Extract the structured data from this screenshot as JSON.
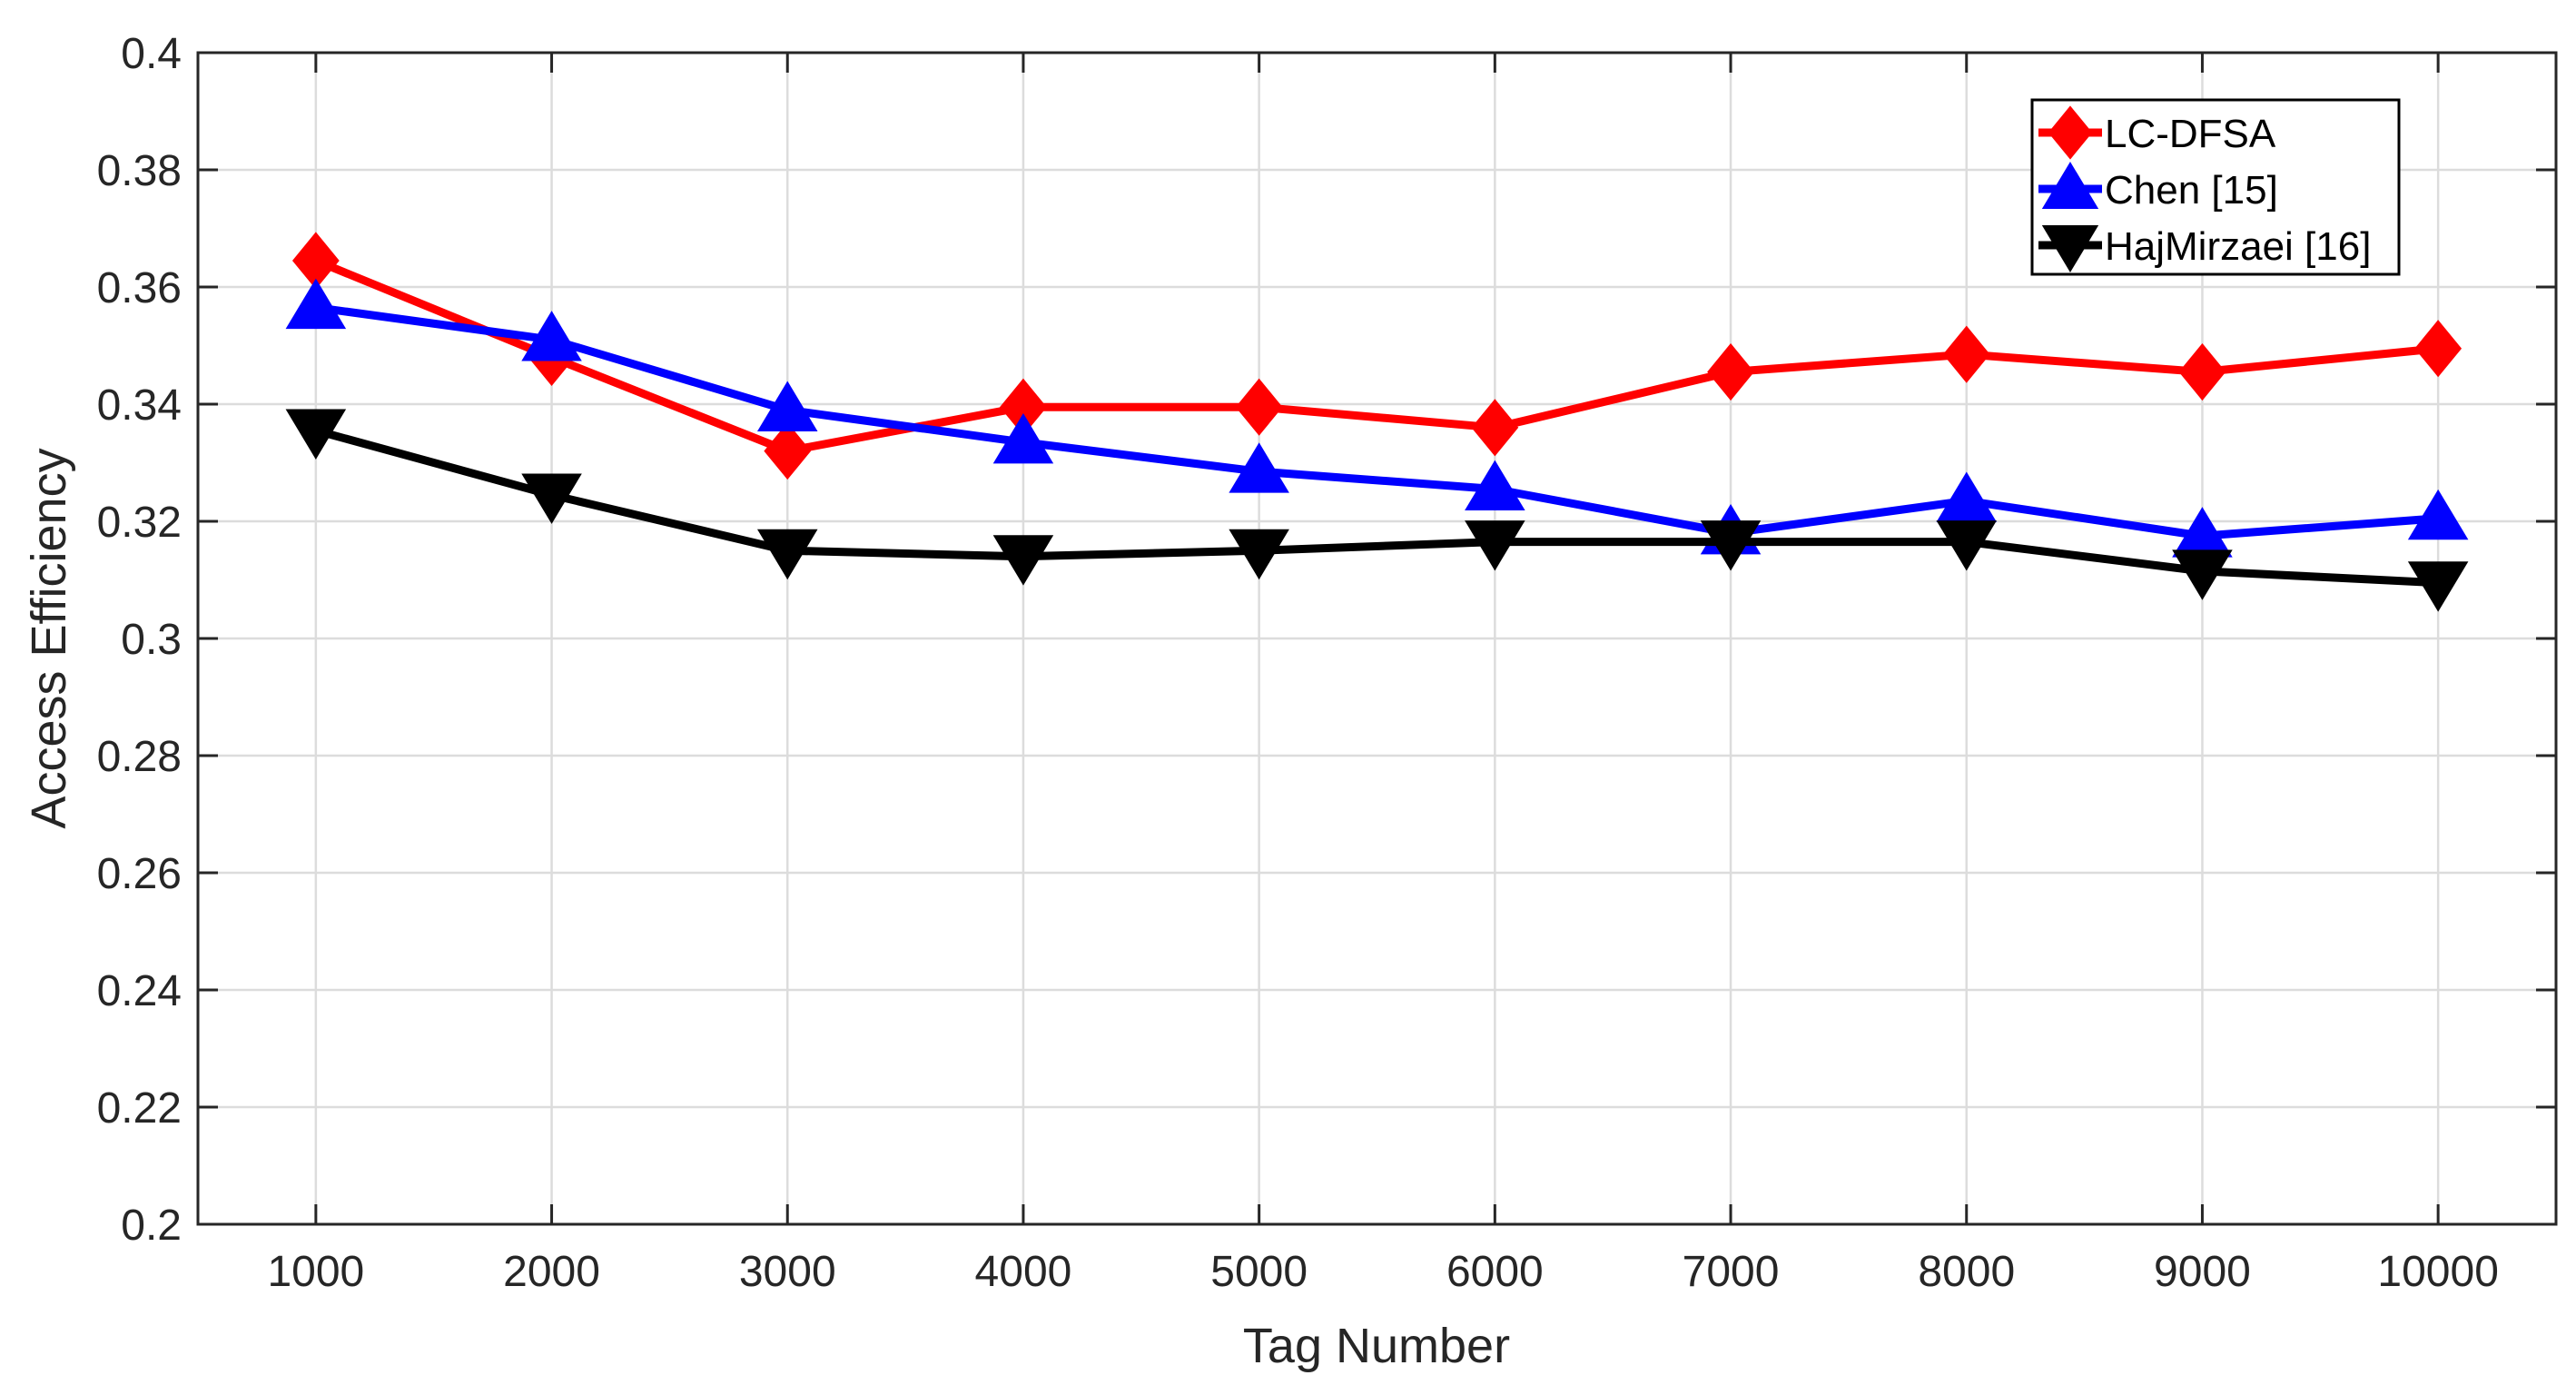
{
  "chart_data": {
    "type": "line",
    "xlabel": "Tag Number",
    "ylabel": "Access Efficiency",
    "x": [
      1000,
      2000,
      3000,
      4000,
      5000,
      6000,
      7000,
      8000,
      9000,
      10000
    ],
    "xlim": [
      500,
      10500
    ],
    "ylim": [
      0.2,
      0.4
    ],
    "yticks": [
      0.2,
      0.22,
      0.24,
      0.26,
      0.28,
      0.3,
      0.32,
      0.34,
      0.36,
      0.38,
      0.4
    ],
    "ytick_labels": [
      "0.2",
      "0.22",
      "0.24",
      "0.26",
      "0.28",
      "0.3",
      "0.32",
      "0.34",
      "0.36",
      "0.38",
      "0.4"
    ],
    "grid": true,
    "legend_position": "top-right",
    "series": [
      {
        "name": "LC-DFSA",
        "color": "#ff0000",
        "marker": "diamond",
        "values": [
          0.3645,
          0.348,
          0.332,
          0.3395,
          0.3395,
          0.336,
          0.3455,
          0.3485,
          0.3455,
          0.3495
        ]
      },
      {
        "name": "Chen [15]",
        "color": "#0000ff",
        "marker": "triangle-up",
        "values": [
          0.3565,
          0.351,
          0.339,
          0.3335,
          0.3285,
          0.3255,
          0.318,
          0.3235,
          0.3175,
          0.3205
        ]
      },
      {
        "name": "HajMirzaei [16]",
        "color": "#000000",
        "marker": "triangle-down",
        "values": [
          0.3355,
          0.3245,
          0.315,
          0.314,
          0.315,
          0.3165,
          0.3165,
          0.3165,
          0.3115,
          0.3095
        ]
      }
    ]
  }
}
